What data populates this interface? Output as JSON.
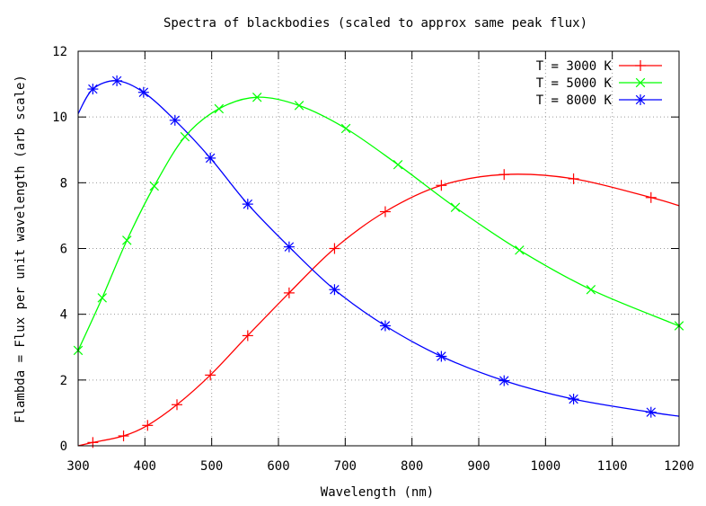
{
  "chart_data": {
    "type": "line",
    "title": "Spectra of blackbodies (scaled to approx same peak flux)",
    "xlabel": "Wavelength (nm)",
    "ylabel": "Flambda = Flux per unit wavelength (arb scale)",
    "xlim": [
      300,
      1200
    ],
    "ylim": [
      0,
      12
    ],
    "xticks": [
      300,
      400,
      500,
      600,
      700,
      800,
      900,
      1000,
      1100,
      1200
    ],
    "yticks": [
      0,
      2,
      4,
      6,
      8,
      10,
      12
    ],
    "grid": true,
    "legend_position": "top-right",
    "series": [
      {
        "name": "T = 3000 K",
        "color": "#ff0000",
        "marker": "plus",
        "x": [
          300,
          322,
          368,
          404,
          448,
          498,
          554,
          616,
          684,
          760,
          844,
          938,
          1042,
          1158,
          1200
        ],
        "y": [
          0.0,
          0.1,
          0.3,
          0.62,
          1.25,
          2.15,
          3.35,
          4.65,
          6.0,
          7.12,
          7.92,
          8.25,
          8.12,
          7.55,
          7.3
        ],
        "markers_x": [
          322,
          368,
          404,
          448,
          498,
          554,
          616,
          684,
          760,
          844,
          938,
          1042,
          1158
        ]
      },
      {
        "name": "T = 5000 K",
        "color": "#00ff00",
        "marker": "cross",
        "x": [
          300,
          336,
          373,
          414,
          460,
          511,
          568,
          631,
          701,
          779,
          865,
          961,
          1068,
          1187,
          1200
        ],
        "y": [
          2.9,
          4.5,
          6.25,
          7.9,
          9.4,
          10.25,
          10.6,
          10.35,
          9.65,
          8.55,
          7.25,
          5.95,
          4.75,
          3.75,
          3.65
        ],
        "markers_x": [
          300,
          336,
          373,
          414,
          460,
          511,
          568,
          631,
          701,
          779,
          865,
          961,
          1068,
          1200
        ]
      },
      {
        "name": "T = 8000 K",
        "color": "#0000ff",
        "marker": "star",
        "x": [
          300,
          322,
          358,
          398,
          445,
          498,
          554,
          616,
          684,
          760,
          844,
          938,
          1042,
          1158,
          1200
        ],
        "y": [
          10.1,
          10.85,
          11.1,
          10.75,
          9.9,
          8.75,
          7.35,
          6.05,
          4.75,
          3.65,
          2.72,
          1.98,
          1.42,
          1.02,
          0.9
        ],
        "markers_x": [
          322,
          358,
          398,
          445,
          498,
          554,
          616,
          684,
          760,
          844,
          938,
          1042,
          1158
        ]
      }
    ]
  }
}
